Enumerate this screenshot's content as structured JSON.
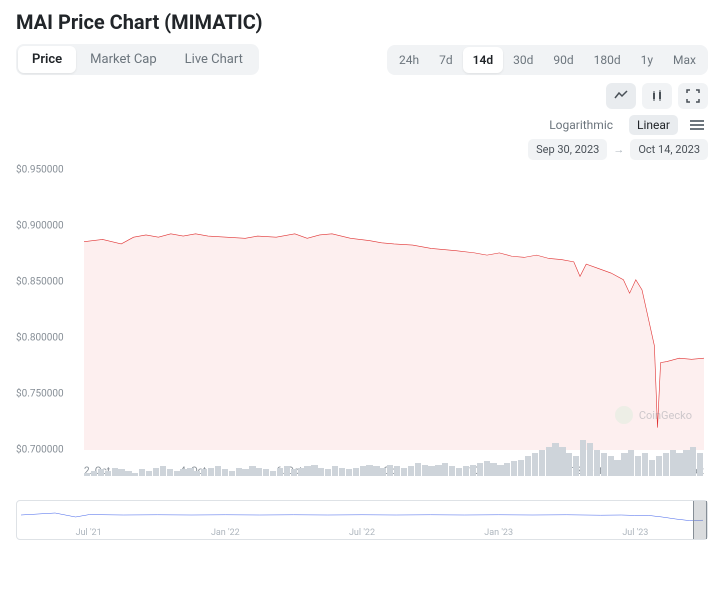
{
  "title": "MAI Price Chart (MIMATIC)",
  "tabs": [
    {
      "label": "Price",
      "active": true
    },
    {
      "label": "Market Cap",
      "active": false
    },
    {
      "label": "Live Chart",
      "active": false
    }
  ],
  "ranges": [
    {
      "label": "24h",
      "active": false
    },
    {
      "label": "7d",
      "active": false
    },
    {
      "label": "14d",
      "active": true
    },
    {
      "label": "30d",
      "active": false
    },
    {
      "label": "90d",
      "active": false
    },
    {
      "label": "180d",
      "active": false
    },
    {
      "label": "1y",
      "active": false
    },
    {
      "label": "Max",
      "active": false
    }
  ],
  "scale": {
    "log": "Logarithmic",
    "linear": "Linear",
    "active": "linear"
  },
  "date_from": "Sep 30, 2023",
  "date_to": "Oct 14, 2023",
  "watermark": "CoinGecko",
  "chart": {
    "type": "line",
    "line_color": "#e03131",
    "fill_color": "rgba(224,49,49,0.08)",
    "background": "#ffffff",
    "ylim": [
      0.7,
      0.95
    ],
    "y_ticks": [
      0.7,
      0.75,
      0.8,
      0.85,
      0.9,
      0.95
    ],
    "y_tick_labels": [
      "$0.700000",
      "$0.750000",
      "$0.800000",
      "$0.850000",
      "$0.900000",
      "$0.950000"
    ],
    "x_labels": [
      "2. Oct",
      "4. Oct",
      "6. Oct",
      "8. Oct",
      "10. Oct",
      "12. Oct",
      "14. Oct"
    ],
    "series": [
      [
        0.0,
        0.886
      ],
      [
        0.03,
        0.888
      ],
      [
        0.06,
        0.884
      ],
      [
        0.08,
        0.89
      ],
      [
        0.1,
        0.892
      ],
      [
        0.12,
        0.89
      ],
      [
        0.14,
        0.893
      ],
      [
        0.16,
        0.891
      ],
      [
        0.18,
        0.893
      ],
      [
        0.2,
        0.891
      ],
      [
        0.23,
        0.89
      ],
      [
        0.26,
        0.889
      ],
      [
        0.28,
        0.891
      ],
      [
        0.31,
        0.89
      ],
      [
        0.34,
        0.893
      ],
      [
        0.36,
        0.889
      ],
      [
        0.38,
        0.892
      ],
      [
        0.4,
        0.893
      ],
      [
        0.43,
        0.889
      ],
      [
        0.46,
        0.887
      ],
      [
        0.48,
        0.885
      ],
      [
        0.5,
        0.884
      ],
      [
        0.53,
        0.883
      ],
      [
        0.56,
        0.88
      ],
      [
        0.58,
        0.879
      ],
      [
        0.6,
        0.878
      ],
      [
        0.63,
        0.876
      ],
      [
        0.65,
        0.874
      ],
      [
        0.67,
        0.876
      ],
      [
        0.69,
        0.873
      ],
      [
        0.71,
        0.872
      ],
      [
        0.73,
        0.874
      ],
      [
        0.75,
        0.871
      ],
      [
        0.77,
        0.87
      ],
      [
        0.79,
        0.868
      ],
      [
        0.8,
        0.855
      ],
      [
        0.81,
        0.866
      ],
      [
        0.83,
        0.862
      ],
      [
        0.85,
        0.858
      ],
      [
        0.87,
        0.852
      ],
      [
        0.88,
        0.84
      ],
      [
        0.89,
        0.852
      ],
      [
        0.9,
        0.843
      ],
      [
        0.91,
        0.818
      ],
      [
        0.92,
        0.793
      ],
      [
        0.925,
        0.72
      ],
      [
        0.93,
        0.778
      ],
      [
        0.94,
        0.779
      ],
      [
        0.96,
        0.782
      ],
      [
        0.98,
        0.781
      ],
      [
        1.0,
        0.782
      ]
    ]
  },
  "volume": {
    "color": "#ced4da",
    "bars": [
      2,
      3,
      4,
      3,
      5,
      4,
      3,
      2,
      4,
      3,
      5,
      6,
      4,
      3,
      4,
      5,
      3,
      4,
      5,
      6,
      4,
      3,
      5,
      4,
      6,
      5,
      4,
      3,
      5,
      6,
      4,
      5,
      6,
      7,
      5,
      4,
      6,
      5,
      4,
      5,
      6,
      7,
      6,
      5,
      7,
      6,
      5,
      6,
      8,
      7,
      6,
      7,
      8,
      6,
      5,
      6,
      7,
      8,
      9,
      8,
      7,
      8,
      9,
      10,
      12,
      14,
      16,
      18,
      20,
      18,
      14,
      12,
      22,
      20,
      16,
      14,
      12,
      10,
      14,
      16,
      12,
      14,
      10,
      12,
      14,
      16,
      14,
      16,
      18,
      14
    ]
  },
  "overview": {
    "line_color": "#4263eb",
    "labels": [
      "Jul '21",
      "Jan '22",
      "Jul '22",
      "Jan '23",
      "Jul '23"
    ],
    "series": [
      [
        0.0,
        0.5
      ],
      [
        0.05,
        0.6
      ],
      [
        0.08,
        0.4
      ],
      [
        0.1,
        0.52
      ],
      [
        0.15,
        0.5
      ],
      [
        0.2,
        0.51
      ],
      [
        0.25,
        0.5
      ],
      [
        0.3,
        0.51
      ],
      [
        0.35,
        0.5
      ],
      [
        0.4,
        0.51
      ],
      [
        0.45,
        0.5
      ],
      [
        0.5,
        0.51
      ],
      [
        0.55,
        0.5
      ],
      [
        0.6,
        0.51
      ],
      [
        0.65,
        0.5
      ],
      [
        0.7,
        0.51
      ],
      [
        0.75,
        0.5
      ],
      [
        0.8,
        0.51
      ],
      [
        0.85,
        0.49
      ],
      [
        0.88,
        0.5
      ],
      [
        0.9,
        0.48
      ],
      [
        0.92,
        0.48
      ],
      [
        0.94,
        0.4
      ],
      [
        0.96,
        0.3
      ],
      [
        0.98,
        0.22
      ],
      [
        1.0,
        0.24
      ]
    ]
  }
}
